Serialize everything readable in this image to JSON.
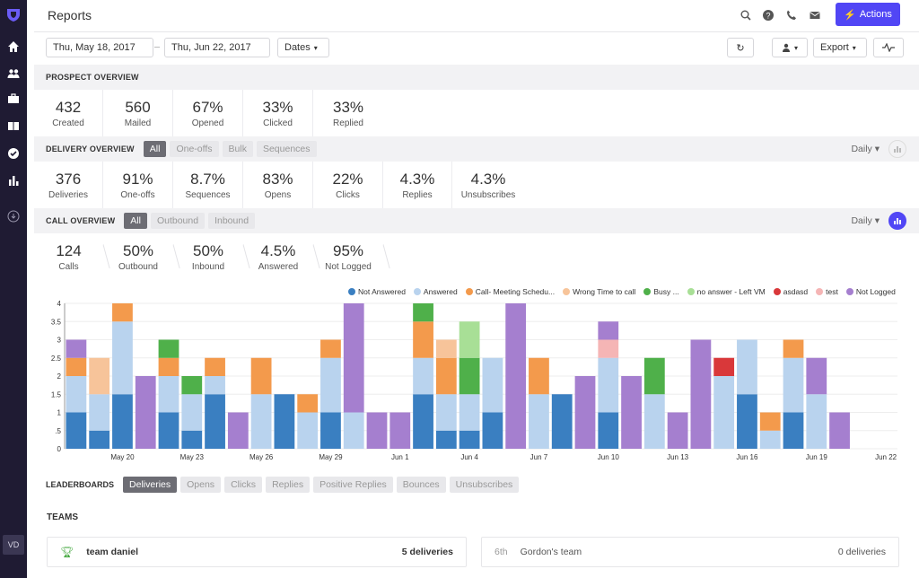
{
  "app": {
    "title": "Reports",
    "actions_label": "Actions",
    "user_initials": "VD"
  },
  "dates": {
    "start": "Thu, May 18, 2017",
    "end": "Thu, Jun 22, 2017",
    "dates_label": "Dates",
    "export_label": "Export"
  },
  "prospect": {
    "label": "PROSPECT OVERVIEW",
    "stats": [
      {
        "value": "432",
        "label": "Created"
      },
      {
        "value": "560",
        "label": "Mailed"
      },
      {
        "value": "67%",
        "label": "Opened"
      },
      {
        "value": "33%",
        "label": "Clicked"
      },
      {
        "value": "33%",
        "label": "Replied"
      }
    ]
  },
  "delivery": {
    "label": "DELIVERY OVERVIEW",
    "tabs": [
      "All",
      "One-offs",
      "Bulk",
      "Sequences"
    ],
    "daily": "Daily",
    "stats": [
      {
        "value": "376",
        "label": "Deliveries"
      },
      {
        "value": "91%",
        "label": "One-offs"
      },
      {
        "value": "8.7%",
        "label": "Sequences"
      },
      {
        "value": "83%",
        "label": "Opens"
      },
      {
        "value": "22%",
        "label": "Clicks"
      },
      {
        "value": "4.3%",
        "label": "Replies"
      },
      {
        "value": "4.3%",
        "label": "Unsubscribes"
      }
    ]
  },
  "calls": {
    "label": "CALL OVERVIEW",
    "tabs": [
      "All",
      "Outbound",
      "Inbound"
    ],
    "daily": "Daily",
    "stats": [
      {
        "value": "124",
        "label": "Calls"
      },
      {
        "value": "50%",
        "label": "Outbound"
      },
      {
        "value": "50%",
        "label": "Inbound"
      },
      {
        "value": "4.5%",
        "label": "Answered"
      },
      {
        "value": "95%",
        "label": "Not Logged"
      }
    ]
  },
  "chart_data": {
    "type": "bar",
    "stacked": true,
    "ylim": [
      0,
      4
    ],
    "yticks": [
      "0",
      ".5",
      "1",
      "1.5",
      "2",
      "2.5",
      "3",
      "3.5",
      "4"
    ],
    "xtick_labels": [
      {
        "index": 2,
        "label": "May 20"
      },
      {
        "index": 5,
        "label": "May 23"
      },
      {
        "index": 8,
        "label": "May 26"
      },
      {
        "index": 11,
        "label": "May 29"
      },
      {
        "index": 14,
        "label": "Jun 1"
      },
      {
        "index": 17,
        "label": "Jun 4"
      },
      {
        "index": 20,
        "label": "Jun 7"
      },
      {
        "index": 23,
        "label": "Jun 10"
      },
      {
        "index": 26,
        "label": "Jun 13"
      },
      {
        "index": 29,
        "label": "Jun 16"
      },
      {
        "index": 32,
        "label": "Jun 19"
      },
      {
        "index": 35,
        "label": "Jun 22"
      }
    ],
    "series": [
      {
        "name": "Not Answered",
        "color": "#3a7fc1"
      },
      {
        "name": "Answered",
        "color": "#b9d3ee"
      },
      {
        "name": "Call- Meeting Schedu...",
        "color": "#f39a4c"
      },
      {
        "name": "Wrong Time to call",
        "color": "#f7c49a"
      },
      {
        "name": "Busy ...",
        "color": "#4fb04a"
      },
      {
        "name": "no answer - Left VM",
        "color": "#a8df96"
      },
      {
        "name": "asdasd",
        "color": "#d9383a"
      },
      {
        "name": "test",
        "color": "#f5b5b5"
      },
      {
        "name": "Not Logged",
        "color": "#a57fcf"
      }
    ],
    "bars": [
      [
        [
          "Not Answered",
          1
        ],
        [
          "Answered",
          1
        ],
        [
          "Call- Meeting Schedu...",
          0.5
        ],
        [
          "Not Logged",
          0.5
        ]
      ],
      [
        [
          "Not Answered",
          0.5
        ],
        [
          "Answered",
          1
        ],
        [
          "Wrong Time to call",
          1
        ]
      ],
      [
        [
          "Not Answered",
          1.5
        ],
        [
          "Answered",
          2
        ],
        [
          "Call- Meeting Schedu...",
          0.5
        ]
      ],
      [
        [
          "Not Logged",
          2
        ]
      ],
      [
        [
          "Not Answered",
          1
        ],
        [
          "Answered",
          1
        ],
        [
          "Call- Meeting Schedu...",
          0.5
        ],
        [
          "Busy ...",
          0.5
        ]
      ],
      [
        [
          "Not Answered",
          0.5
        ],
        [
          "Answered",
          1
        ],
        [
          "Busy ...",
          0.5
        ]
      ],
      [
        [
          "Not Answered",
          1.5
        ],
        [
          "Answered",
          0.5
        ],
        [
          "Call- Meeting Schedu...",
          0.5
        ]
      ],
      [
        [
          "Not Logged",
          1
        ]
      ],
      [
        [
          "Answered",
          1.5
        ],
        [
          "Call- Meeting Schedu...",
          1
        ]
      ],
      [
        [
          "Not Answered",
          1.5
        ]
      ],
      [
        [
          "Answered",
          1
        ],
        [
          "Call- Meeting Schedu...",
          0.5
        ]
      ],
      [
        [
          "Not Answered",
          1
        ],
        [
          "Answered",
          1.5
        ],
        [
          "Call- Meeting Schedu...",
          0.5
        ]
      ],
      [
        [
          "Answered",
          1
        ],
        [
          "Not Logged",
          3
        ]
      ],
      [
        [
          "Not Logged",
          1
        ]
      ],
      [
        [
          "Not Logged",
          1
        ]
      ],
      [
        [
          "Not Answered",
          1.5
        ],
        [
          "Answered",
          1
        ],
        [
          "Call- Meeting Schedu...",
          1
        ],
        [
          "Busy ...",
          0.5
        ]
      ],
      [
        [
          "Not Answered",
          0.5
        ],
        [
          "Answered",
          1
        ],
        [
          "Call- Meeting Schedu...",
          1
        ],
        [
          "Wrong Time to call",
          0.5
        ]
      ],
      [
        [
          "Not Answered",
          0.5
        ],
        [
          "Answered",
          1
        ],
        [
          "Busy ...",
          1
        ],
        [
          "no answer - Left VM",
          1
        ]
      ],
      [
        [
          "Not Answered",
          1
        ],
        [
          "Answered",
          1.5
        ]
      ],
      [
        [
          "Not Logged",
          4
        ]
      ],
      [
        [
          "Answered",
          1.5
        ],
        [
          "Call- Meeting Schedu...",
          1
        ]
      ],
      [
        [
          "Not Answered",
          1.5
        ]
      ],
      [
        [
          "Not Logged",
          2
        ]
      ],
      [
        [
          "Not Answered",
          1
        ],
        [
          "Answered",
          1.5
        ],
        [
          "test",
          0.5
        ],
        [
          "Not Logged",
          0.5
        ]
      ],
      [
        [
          "Not Logged",
          2
        ]
      ],
      [
        [
          "Answered",
          1.5
        ],
        [
          "Busy ...",
          1
        ]
      ],
      [
        [
          "Not Logged",
          1
        ]
      ],
      [
        [
          "Not Logged",
          3
        ]
      ],
      [
        [
          "Answered",
          2
        ],
        [
          "asdasd",
          0.5
        ]
      ],
      [
        [
          "Not Answered",
          1.5
        ],
        [
          "Answered",
          1.5
        ]
      ],
      [
        [
          "Answered",
          0.5
        ],
        [
          "Call- Meeting Schedu...",
          0.5
        ]
      ],
      [
        [
          "Not Answered",
          1
        ],
        [
          "Answered",
          1.5
        ],
        [
          "Call- Meeting Schedu...",
          0.5
        ]
      ],
      [
        [
          "Answered",
          1.5
        ],
        [
          "Not Logged",
          1
        ]
      ],
      [
        [
          "Not Logged",
          1
        ]
      ]
    ]
  },
  "leaderboards": {
    "label": "LEADERBOARDS",
    "tabs": [
      "Deliveries",
      "Opens",
      "Clicks",
      "Replies",
      "Positive Replies",
      "Bounces",
      "Unsubscribes"
    ]
  },
  "teams": {
    "title": "TEAMS",
    "left": {
      "name": "team daniel",
      "value": "5 deliveries"
    },
    "right": {
      "rank": "6th",
      "name": "Gordon's team",
      "value": "0 deliveries"
    }
  }
}
